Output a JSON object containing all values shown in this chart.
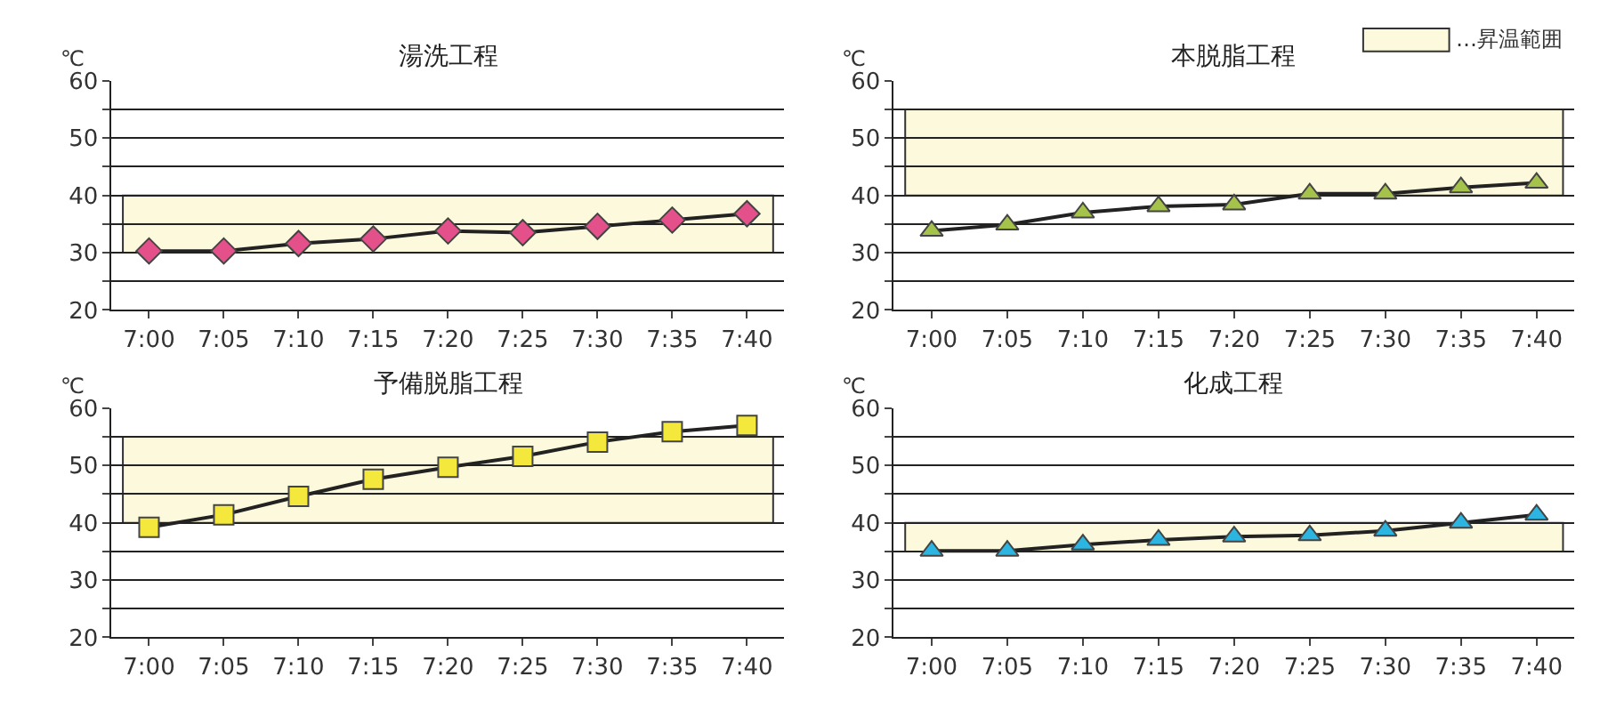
{
  "chart_data": [
    {
      "type": "line",
      "title": "湯洗工程",
      "ylabel": "℃",
      "categories": [
        "7:00",
        "7:05",
        "7:10",
        "7:15",
        "7:20",
        "7:25",
        "7:30",
        "7:35",
        "7:40"
      ],
      "series": [
        {
          "color": "#e4508a",
          "values": [
            30.3,
            30.3,
            31.6,
            32.4,
            33.8,
            33.5,
            34.6,
            35.7,
            36.8
          ]
        }
      ],
      "ylim": [
        20,
        60
      ],
      "yticks": [
        20,
        {
          "value": 25,
          "label": null
        },
        30,
        {
          "value": 35,
          "label": null
        },
        40,
        {
          "value": 45,
          "label": null
        },
        50,
        {
          "value": 55,
          "label": null
        },
        60
      ],
      "grid": "y",
      "marker": "diamond",
      "line_style": "solid",
      "bands": [
        {
          "axis": "y",
          "from": 30,
          "to": 40,
          "color": "#fdf9dc"
        }
      ]
    },
    {
      "type": "line",
      "title": "本脱脂工程",
      "ylabel": "℃",
      "categories": [
        "7:00",
        "7:05",
        "7:10",
        "7:15",
        "7:20",
        "7:25",
        "7:30",
        "7:35",
        "7:40"
      ],
      "series": [
        {
          "color": "#a5c24a",
          "values": [
            33.8,
            34.9,
            37.0,
            38.1,
            38.4,
            40.3,
            40.3,
            41.4,
            42.2
          ]
        }
      ],
      "ylim": [
        20,
        60
      ],
      "yticks": [
        20,
        {
          "value": 25,
          "label": null
        },
        30,
        {
          "value": 35,
          "label": null
        },
        40,
        {
          "value": 45,
          "label": null
        },
        50,
        {
          "value": 55,
          "label": null
        },
        60
      ],
      "grid": "y",
      "marker": "triangle",
      "line_style": "solid",
      "bands": [
        {
          "axis": "y",
          "from": 40,
          "to": 55,
          "color": "#fdf9dc",
          "label": "…昇温範囲"
        }
      ]
    },
    {
      "type": "line",
      "title": "予備脱脂工程",
      "ylabel": "℃",
      "categories": [
        "7:00",
        "7:05",
        "7:10",
        "7:15",
        "7:20",
        "7:25",
        "7:30",
        "7:35",
        "7:40"
      ],
      "series": [
        {
          "color": "#f5e83c",
          "values": [
            39.2,
            41.4,
            44.6,
            47.6,
            49.7,
            51.6,
            54.1,
            55.9,
            57.0
          ]
        }
      ],
      "ylim": [
        20,
        60
      ],
      "yticks": [
        20,
        {
          "value": 25,
          "label": null
        },
        30,
        {
          "value": 35,
          "label": null
        },
        40,
        {
          "value": 45,
          "label": null
        },
        50,
        {
          "value": 55,
          "label": null
        },
        60
      ],
      "grid": "y",
      "marker": "square",
      "line_style": "solid",
      "bands": [
        {
          "axis": "y",
          "from": 40,
          "to": 55,
          "color": "#fdf9dc"
        }
      ]
    },
    {
      "type": "line",
      "title": "化成工程",
      "ylabel": "℃",
      "categories": [
        "7:00",
        "7:05",
        "7:10",
        "7:15",
        "7:20",
        "7:25",
        "7:30",
        "7:35",
        "7:40"
      ],
      "series": [
        {
          "color": "#2bb5e0",
          "values": [
            35.1,
            35.1,
            36.2,
            37.0,
            37.6,
            37.8,
            38.6,
            40.0,
            41.4
          ]
        }
      ],
      "ylim": [
        20,
        60
      ],
      "yticks": [
        20,
        {
          "value": 25,
          "label": null
        },
        30,
        {
          "value": 35,
          "label": null
        },
        40,
        {
          "value": 45,
          "label": null
        },
        50,
        {
          "value": 55,
          "label": null
        },
        60
      ],
      "grid": "y",
      "marker": "triangle",
      "line_style": "solid",
      "bands": [
        {
          "axis": "y",
          "from": 35,
          "to": 40,
          "color": "#fdf9dc"
        }
      ]
    }
  ]
}
